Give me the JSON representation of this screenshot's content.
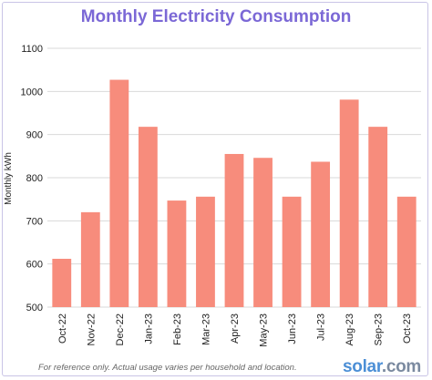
{
  "chart_data": {
    "type": "bar",
    "title": "Monthly Electricity Consumption",
    "xlabel": "",
    "ylabel": "Monthly kWh",
    "categories": [
      "Oct-22",
      "Nov-22",
      "Dec-22",
      "Jan-23",
      "Feb-23",
      "Mar-23",
      "Apr-23",
      "May-23",
      "Jun-23",
      "Jul-23",
      "Aug-23",
      "Sep-23",
      "Oct-23"
    ],
    "values": [
      612,
      720,
      1027,
      918,
      747,
      756,
      855,
      846,
      756,
      837,
      981,
      918,
      756
    ],
    "ylim": [
      500,
      1100
    ],
    "yticks": [
      500,
      600,
      700,
      800,
      900,
      1000,
      1100
    ],
    "grid": true,
    "legend": "none",
    "bar_color": "#f78c7c",
    "title_color": "#7b68d6"
  },
  "footnote": "For reference only. Actual usage varies per household and location.",
  "brand": {
    "name": "solar",
    "suffix": ".com"
  }
}
